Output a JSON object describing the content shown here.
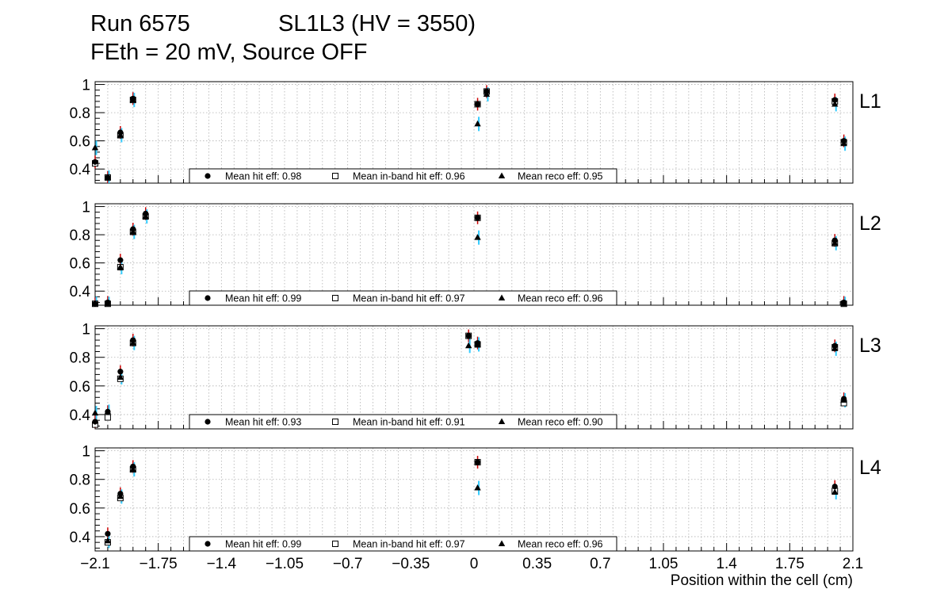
{
  "header": {
    "run": "Run 6575",
    "chamber": "SL1L3 (HV = 3550)",
    "conditions": "FEth = 20 mV, Source OFF"
  },
  "chart_data": [
    {
      "type": "scatter",
      "panel_label": "L1",
      "xlim": [
        -2.1,
        2.1
      ],
      "ylim": [
        0.3,
        1.02
      ],
      "y_ticks": [
        "0.4",
        "0.6",
        "0.8",
        "1"
      ],
      "grid": true,
      "legend": [
        {
          "marker": "filled-circle",
          "label": "Mean hit  eff: 0.98"
        },
        {
          "marker": "open-square",
          "label": "Mean in-band hit eff: 0.96"
        },
        {
          "marker": "filled-triangle",
          "label": "Mean reco eff: 0.95"
        }
      ],
      "series": [
        {
          "x": [
            -2.1,
            -2.03
          ],
          "hit": [
            0.45,
            0.34
          ],
          "inband": [
            0.44,
            0.34
          ],
          "reco": [
            0.55,
            0.34
          ]
        },
        {
          "x": [
            -1.96,
            -1.89
          ],
          "hit": [
            0.66,
            0.9
          ],
          "inband": [
            0.64,
            0.89
          ],
          "reco": [
            0.64,
            0.89
          ]
        },
        {
          "x": [
            0.02,
            0.07,
            2.0,
            2.05
          ],
          "hit": [
            0.86,
            0.95,
            0.89,
            0.6
          ],
          "inband": [
            0.86,
            0.95,
            0.88,
            0.59
          ],
          "reco": [
            0.72,
            0.93,
            0.86,
            0.58
          ]
        }
      ]
    },
    {
      "type": "scatter",
      "panel_label": "L2",
      "xlim": [
        -2.1,
        2.1
      ],
      "ylim": [
        0.3,
        1.02
      ],
      "y_ticks": [
        "0.4",
        "0.6",
        "0.8",
        "1"
      ],
      "grid": true,
      "legend": [
        {
          "marker": "filled-circle",
          "label": "Mean hit  eff: 0.99"
        },
        {
          "marker": "open-square",
          "label": "Mean in-band hit eff: 0.97"
        },
        {
          "marker": "filled-triangle",
          "label": "Mean reco eff: 0.96"
        }
      ],
      "series": [
        {
          "x": [
            -2.1,
            -2.03
          ],
          "hit": [
            0.31,
            0.32
          ],
          "inband": [
            0.31,
            0.31
          ],
          "reco": [
            0.31,
            0.31
          ]
        },
        {
          "x": [
            -1.96,
            -1.89,
            -1.82
          ],
          "hit": [
            0.62,
            0.84,
            0.95
          ],
          "inband": [
            0.57,
            0.82,
            0.93
          ],
          "reco": [
            0.57,
            0.82,
            0.93
          ]
        },
        {
          "x": [
            0.02,
            2.0,
            2.05
          ],
          "hit": [
            0.92,
            0.76,
            0.32
          ],
          "inband": [
            0.92,
            0.74,
            0.31
          ],
          "reco": [
            0.78,
            0.74,
            0.31
          ]
        }
      ]
    },
    {
      "type": "scatter",
      "panel_label": "L3",
      "xlim": [
        -2.1,
        2.1
      ],
      "ylim": [
        0.3,
        1.02
      ],
      "y_ticks": [
        "0.4",
        "0.6",
        "0.8",
        "1"
      ],
      "grid": true,
      "legend": [
        {
          "marker": "filled-circle",
          "label": "Mean hit  eff: 0.93"
        },
        {
          "marker": "open-square",
          "label": "Mean in-band hit eff: 0.91"
        },
        {
          "marker": "filled-triangle",
          "label": "Mean reco eff: 0.90"
        }
      ],
      "series": [
        {
          "x": [
            -2.1,
            -2.03
          ],
          "hit": [
            0.35,
            0.42
          ],
          "inband": [
            0.33,
            0.38
          ],
          "reco": [
            0.41,
            0.42
          ]
        },
        {
          "x": [
            -1.96,
            -1.89
          ],
          "hit": [
            0.7,
            0.92
          ],
          "inband": [
            0.65,
            0.9
          ],
          "reco": [
            0.66,
            0.9
          ]
        },
        {
          "x": [
            -0.03,
            0.02,
            2.0,
            2.05
          ],
          "hit": [
            0.95,
            0.9,
            0.88,
            0.51
          ],
          "inband": [
            0.95,
            0.89,
            0.87,
            0.48
          ],
          "reco": [
            0.88,
            0.89,
            0.86,
            0.5
          ]
        }
      ]
    },
    {
      "type": "scatter",
      "panel_label": "L4",
      "xlim": [
        -2.1,
        2.1
      ],
      "ylim": [
        0.3,
        1.02
      ],
      "y_ticks": [
        "0.4",
        "0.6",
        "0.8",
        "1"
      ],
      "x_ticks": [
        "−2.1",
        "−1.75",
        "−1.4",
        "−1.05",
        "−0.7",
        "−0.35",
        "0",
        "0.35",
        "0.7",
        "1.05",
        "1.4",
        "1.75",
        "2.1"
      ],
      "xlabel": "Position within the cell (cm)",
      "grid": true,
      "legend": [
        {
          "marker": "filled-circle",
          "label": "Mean hit  eff: 0.99"
        },
        {
          "marker": "open-square",
          "label": "Mean in-band hit eff: 0.97"
        },
        {
          "marker": "filled-triangle",
          "label": "Mean reco eff: 0.96"
        }
      ],
      "series": [
        {
          "x": [
            -2.03
          ],
          "hit": [
            0.42
          ],
          "inband": [
            0.36
          ],
          "reco": [
            0.37
          ]
        },
        {
          "x": [
            -1.96,
            -1.89
          ],
          "hit": [
            0.7,
            0.89
          ],
          "inband": [
            0.67,
            0.87
          ],
          "reco": [
            0.68,
            0.87
          ]
        },
        {
          "x": [
            0.02,
            2.0
          ],
          "hit": [
            0.92,
            0.75
          ],
          "inband": [
            0.92,
            0.72
          ],
          "reco": [
            0.74,
            0.71
          ]
        }
      ]
    }
  ],
  "colors": {
    "hit_error": "#cc0000",
    "inband_error": "#00aaee",
    "reco_error": "#33ccff",
    "marker": "#000000",
    "grid": "#b0b0b0"
  }
}
